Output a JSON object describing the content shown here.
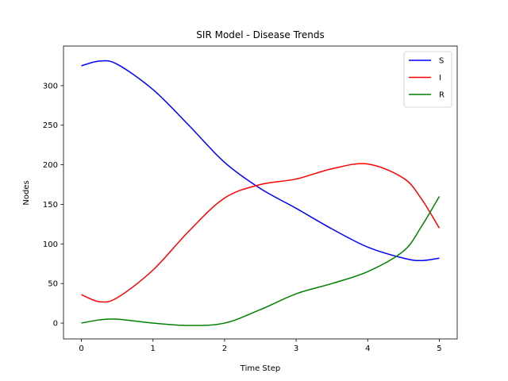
{
  "chart_data": {
    "type": "line",
    "title": "SIR Model - Disease Trends",
    "xlabel": "Time Step",
    "ylabel": "Nodes",
    "xlim": [
      -0.25,
      5.25
    ],
    "ylim": [
      -20,
      350
    ],
    "xticks": [
      0,
      1,
      2,
      3,
      4,
      5
    ],
    "yticks": [
      0,
      50,
      100,
      150,
      200,
      250,
      300
    ],
    "grid": false,
    "legend_position": "top-right",
    "x": [
      0,
      0.25,
      0.5,
      1,
      1.5,
      2,
      2.5,
      3,
      3.5,
      4,
      4.5,
      4.75,
      5
    ],
    "series": [
      {
        "name": "S",
        "color": "#0000ff",
        "values": [
          325,
          331,
          327,
          295,
          250,
          203,
          170,
          145,
          119,
          96,
          82,
          79,
          82
        ]
      },
      {
        "name": "I",
        "color": "#ff0000",
        "values": [
          36,
          27,
          32,
          67,
          116,
          158,
          175,
          182,
          195,
          201,
          183,
          157,
          120
        ]
      },
      {
        "name": "R",
        "color": "#008000",
        "values": [
          0,
          4,
          5,
          0,
          -3,
          0,
          17,
          37,
          50,
          65,
          91,
          122,
          160
        ]
      }
    ]
  }
}
